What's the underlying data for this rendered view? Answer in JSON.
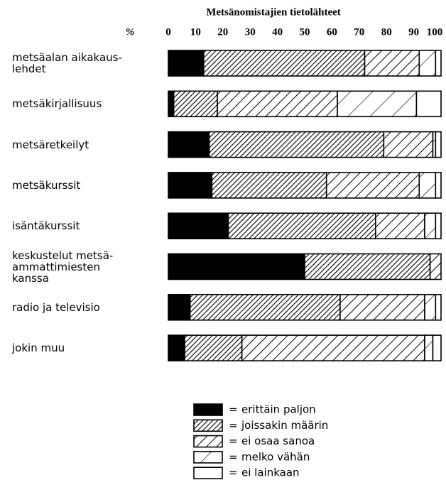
{
  "chart_data": {
    "type": "stacked-barh",
    "title": "Metsänomistajien tietolähteet",
    "axis_label": "%",
    "categories": [
      "metsäalan aikakaus-\nlehdet",
      "metsäkirjallisuus",
      "metsäretkeilyt",
      "metsäkurssit",
      "isäntäkurssit",
      "keskustelut metsä-\nammattimiesten\nkanssa",
      "radio ja televisio",
      "jokin muu"
    ],
    "series": [
      {
        "name": "erittäin paljon",
        "color": "#000000",
        "values": [
          13,
          2,
          15,
          16,
          22,
          50,
          8,
          6
        ]
      },
      {
        "name": "joissakin määrin",
        "color": "#000000",
        "values": [
          59,
          16,
          64,
          42,
          54,
          46,
          55,
          21
        ]
      },
      {
        "name": "ei osaa sanoa",
        "color": "#000000",
        "values": [
          20,
          44,
          18,
          34,
          18,
          4,
          31,
          67
        ]
      },
      {
        "name": "melko vähän",
        "color": "#000000",
        "values": [
          6,
          29,
          1,
          6,
          4,
          0,
          4,
          3
        ]
      },
      {
        "name": "ei lainkaan",
        "color": "#ffffff",
        "values": [
          2,
          9,
          2,
          2,
          2,
          0,
          2,
          3
        ]
      }
    ],
    "xlim": [
      0,
      100
    ],
    "xticks": [
      0,
      10,
      20,
      30,
      40,
      50,
      60,
      70,
      80,
      90,
      100
    ],
    "legend": "bottom"
  }
}
